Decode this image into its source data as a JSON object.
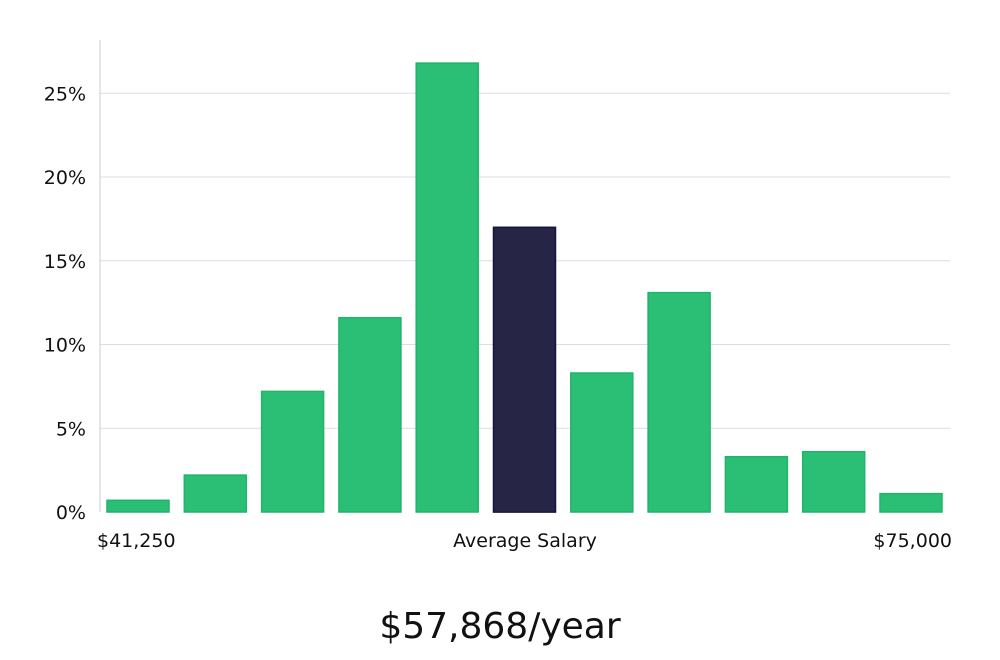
{
  "chart_data": {
    "type": "bar",
    "title": "",
    "xlabel": "Average Salary",
    "ylabel": "",
    "x_range_labels": [
      "$41,250",
      "$75,000"
    ],
    "ylim": [
      0,
      28
    ],
    "yticks": [
      0,
      5,
      10,
      15,
      20,
      25
    ],
    "ytick_labels": [
      "0%",
      "5%",
      "10%",
      "15%",
      "20%",
      "25%"
    ],
    "grid": true,
    "values": [
      0.7,
      2.2,
      7.2,
      11.6,
      26.8,
      17.0,
      8.3,
      13.1,
      3.3,
      3.6,
      1.1
    ],
    "highlight_index": 5,
    "colors": {
      "bar": "#2bbf76",
      "highlight": "#272545",
      "grid": "#dddddd",
      "axis": "#cccccc"
    }
  },
  "summary": {
    "average_salary": "$57,868/year"
  }
}
